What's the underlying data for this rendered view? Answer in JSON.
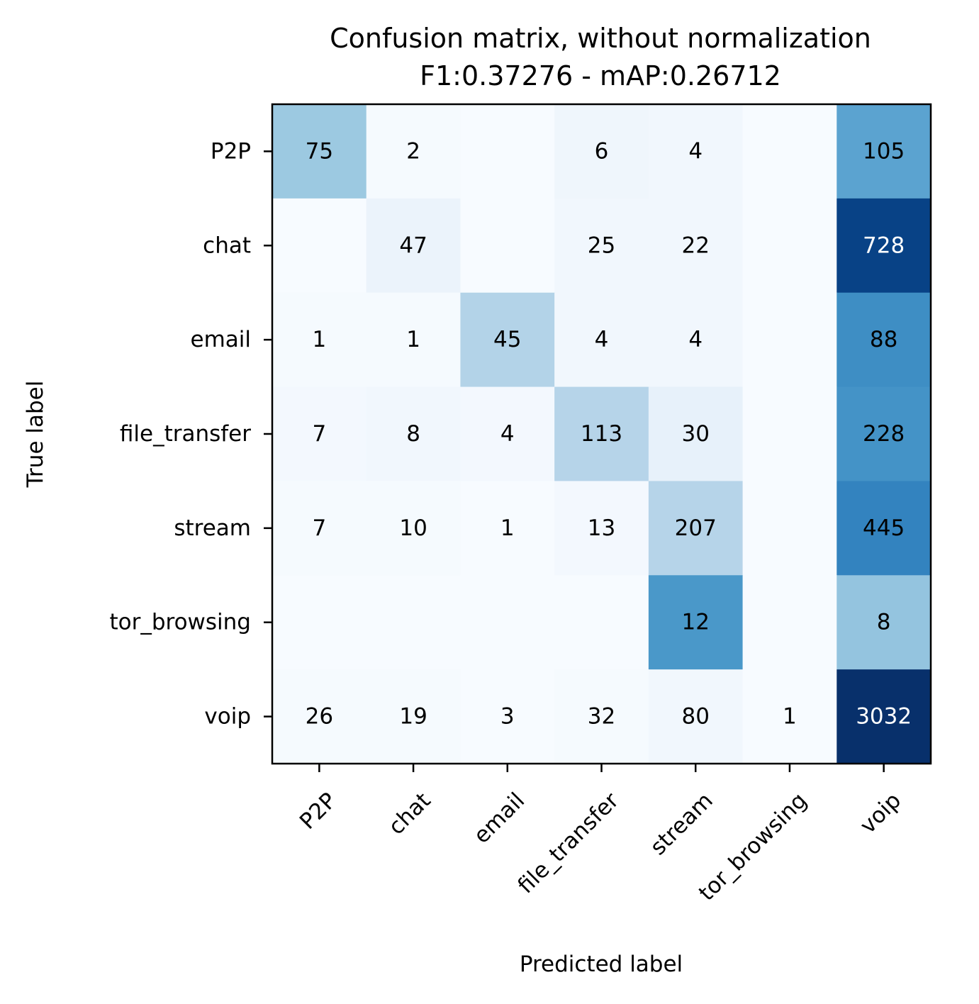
{
  "chart_data": {
    "type": "heatmap",
    "title": "Confusion matrix, without normalization",
    "subtitle": "F1:0.37276 - mAP:0.26712",
    "xlabel": "Predicted label",
    "ylabel": "True label",
    "x_categories": [
      "P2P",
      "chat",
      "email",
      "file_transfer",
      "stream",
      "tor_browsing",
      "voip"
    ],
    "y_categories": [
      "P2P",
      "chat",
      "email",
      "file_transfer",
      "stream",
      "tor_browsing",
      "voip"
    ],
    "colormap": "Blues",
    "matrix": [
      [
        75,
        2,
        0,
        6,
        4,
        0,
        105
      ],
      [
        0,
        47,
        0,
        25,
        22,
        0,
        728
      ],
      [
        1,
        1,
        45,
        4,
        4,
        0,
        88
      ],
      [
        7,
        8,
        4,
        113,
        30,
        0,
        228
      ],
      [
        7,
        10,
        1,
        13,
        207,
        0,
        445
      ],
      [
        0,
        0,
        0,
        0,
        12,
        0,
        8
      ],
      [
        26,
        19,
        3,
        32,
        80,
        1,
        3032
      ]
    ],
    "cell_fill_levels": [
      [
        0.38,
        0.01,
        0.0,
        0.04,
        0.03,
        0.0,
        0.55
      ],
      [
        0.0,
        0.06,
        0.0,
        0.03,
        0.03,
        0.0,
        0.93
      ],
      [
        0.01,
        0.01,
        0.31,
        0.03,
        0.03,
        0.0,
        0.64
      ],
      [
        0.02,
        0.03,
        0.02,
        0.3,
        0.08,
        0.0,
        0.62
      ],
      [
        0.01,
        0.01,
        0.0,
        0.02,
        0.3,
        0.0,
        0.68
      ],
      [
        0.0,
        0.0,
        0.0,
        0.0,
        0.6,
        0.0,
        0.4
      ],
      [
        0.01,
        0.01,
        0.0,
        0.01,
        0.03,
        0.0,
        1.0
      ]
    ],
    "hidden_value": 0,
    "light_text_color": "#ffffff",
    "dark_text_color": "#000000",
    "grid": false
  }
}
